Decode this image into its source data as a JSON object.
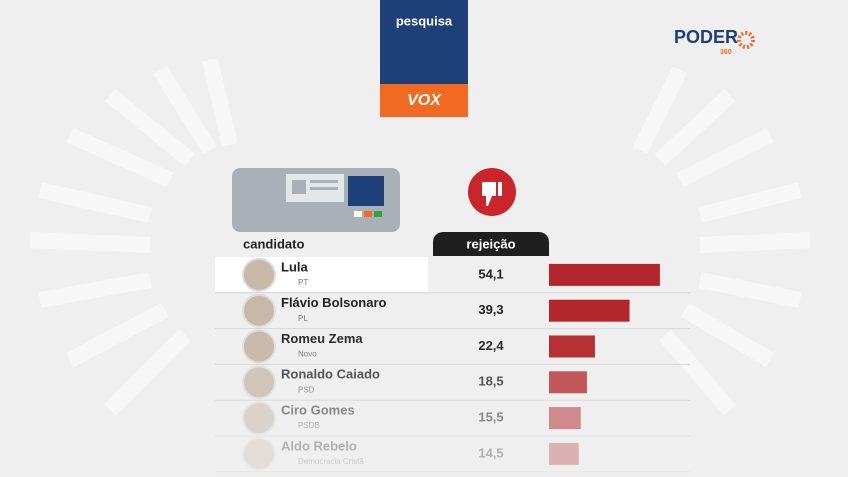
{
  "chart_data": {
    "type": "bar",
    "header": "pesquisa",
    "pollster": "VOX",
    "brand": "PODER",
    "brand_sub": "360",
    "column_candidate": "candidato",
    "column_value": "rejeição",
    "categories": [
      "Lula",
      "Flávio Bolsonaro",
      "Romeu Zema",
      "Ronaldo Caiado",
      "Ciro Gomes",
      "Aldo Rebelo"
    ],
    "parties": [
      "PT",
      "PL",
      "Novo",
      "PSD",
      "PSDB",
      "Democracia Cristã"
    ],
    "values": [
      54.1,
      39.3,
      22.4,
      18.5,
      15.5,
      14.5
    ],
    "value_labels": [
      "54,1",
      "39,3",
      "22,4",
      "18,5",
      "15,5",
      "14,5"
    ],
    "color": "#b3262b"
  }
}
